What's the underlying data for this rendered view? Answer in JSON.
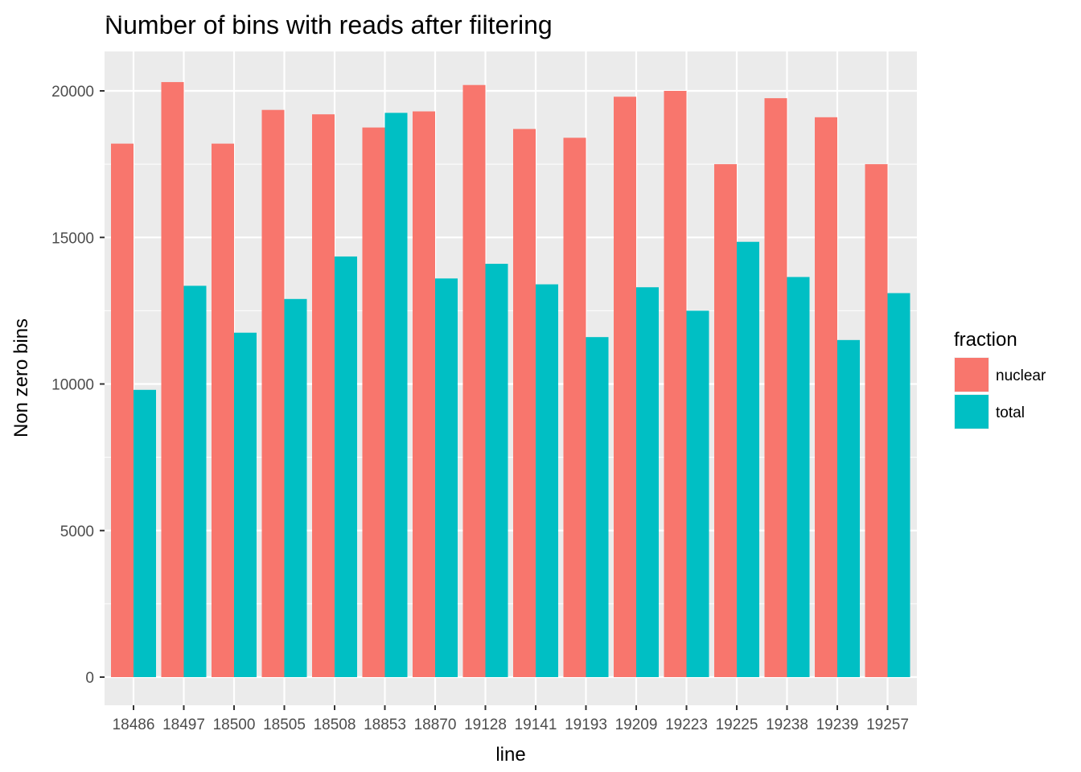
{
  "chart_data": {
    "type": "bar",
    "title": "Number of bins with reads after filtering",
    "xlabel": "line",
    "ylabel": "Non zero bins",
    "categories": [
      "18486",
      "18497",
      "18500",
      "18505",
      "18508",
      "18853",
      "18870",
      "19128",
      "19141",
      "19193",
      "19209",
      "19223",
      "19225",
      "19238",
      "19239",
      "19257"
    ],
    "series": [
      {
        "name": "nuclear",
        "color": "#F8766D",
        "values": [
          18200,
          20300,
          18200,
          19350,
          19200,
          18750,
          19300,
          20200,
          18700,
          18400,
          19800,
          20000,
          17500,
          19750,
          19100,
          17500
        ]
      },
      {
        "name": "total",
        "color": "#00BFC4",
        "values": [
          9800,
          13350,
          11750,
          12900,
          14350,
          19250,
          13600,
          14100,
          13400,
          11600,
          13300,
          12500,
          14850,
          13650,
          11500,
          13100
        ]
      }
    ],
    "ylim": [
      0,
      21000
    ],
    "yticks": [
      0,
      5000,
      10000,
      15000,
      20000
    ],
    "grid": true,
    "panel_background": "#EBEBEB",
    "legend": {
      "title": "fraction",
      "position": "right"
    }
  }
}
